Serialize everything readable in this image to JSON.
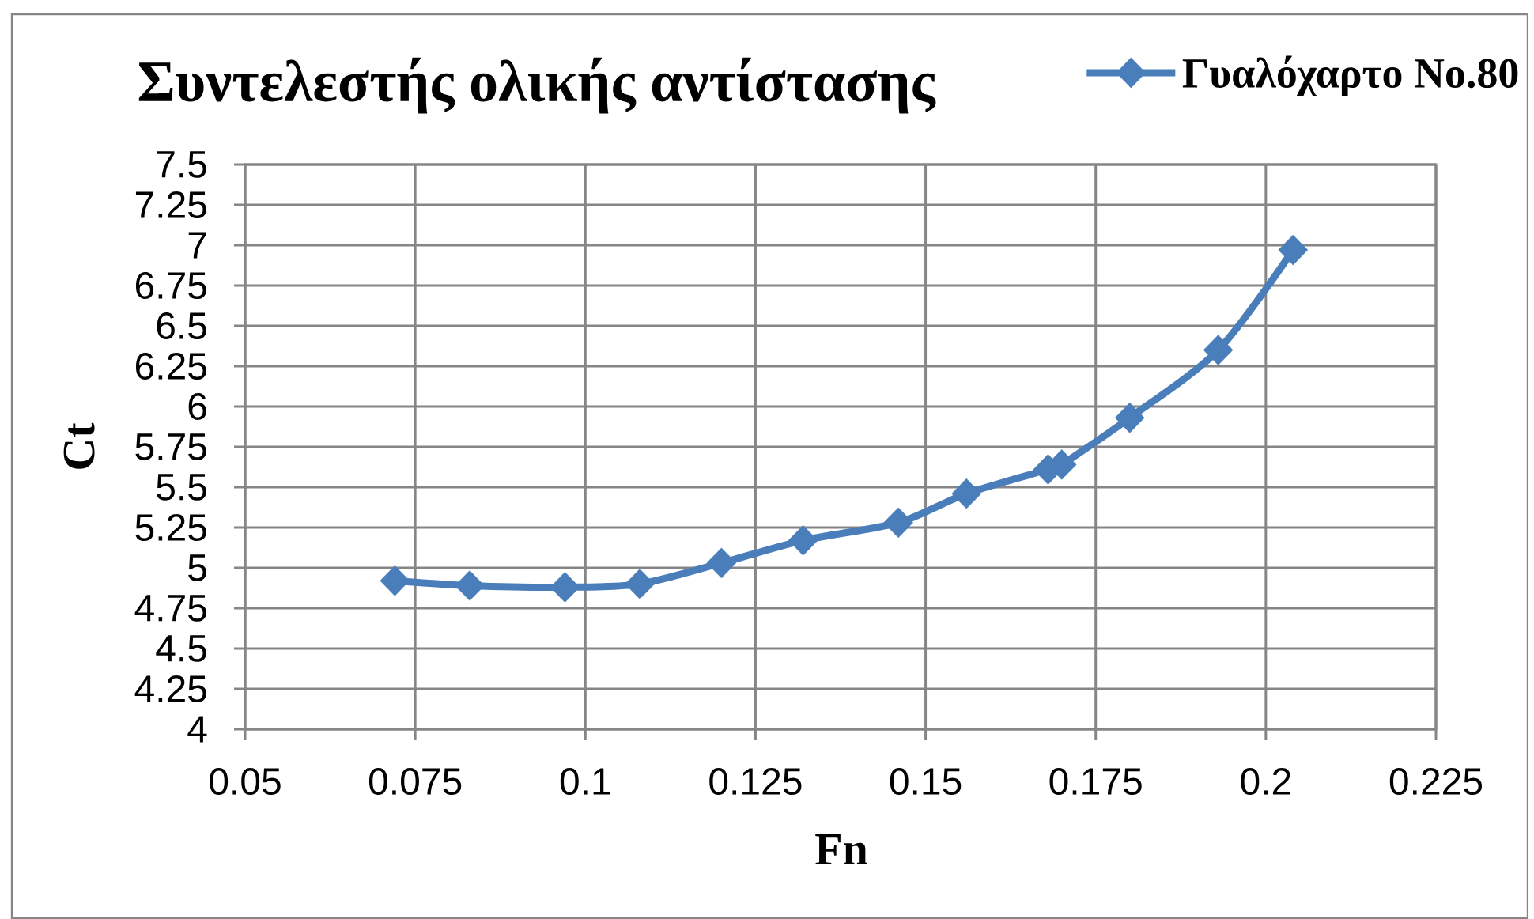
{
  "chart_data": {
    "type": "line",
    "title": "Συντελεστής ολικής αντίστασης",
    "xlabel": "Fn",
    "ylabel": "Ct",
    "x": [
      0.072,
      0.083,
      0.097,
      0.108,
      0.12,
      0.132,
      0.146,
      0.156,
      0.168,
      0.17,
      0.18,
      0.193,
      0.204
    ],
    "series": [
      {
        "name": "Γυαλόχαρτο No.80",
        "color": "#4a7ebb",
        "values": [
          4.92,
          4.89,
          4.88,
          4.9,
          5.03,
          5.17,
          5.28,
          5.46,
          5.61,
          5.64,
          5.93,
          6.35,
          6.97
        ]
      }
    ],
    "xlim": [
      0.05,
      0.225
    ],
    "ylim": [
      4,
      7.5
    ],
    "xticks": [
      0.05,
      0.075,
      0.1,
      0.125,
      0.15,
      0.175,
      0.2,
      0.225
    ],
    "yticks": [
      4,
      4.25,
      4.5,
      4.75,
      5,
      5.25,
      5.5,
      5.75,
      6,
      6.25,
      6.5,
      6.75,
      7,
      7.25,
      7.5
    ],
    "grid": true,
    "legend": "top right",
    "marker": "diamond",
    "line_style": "solid"
  }
}
